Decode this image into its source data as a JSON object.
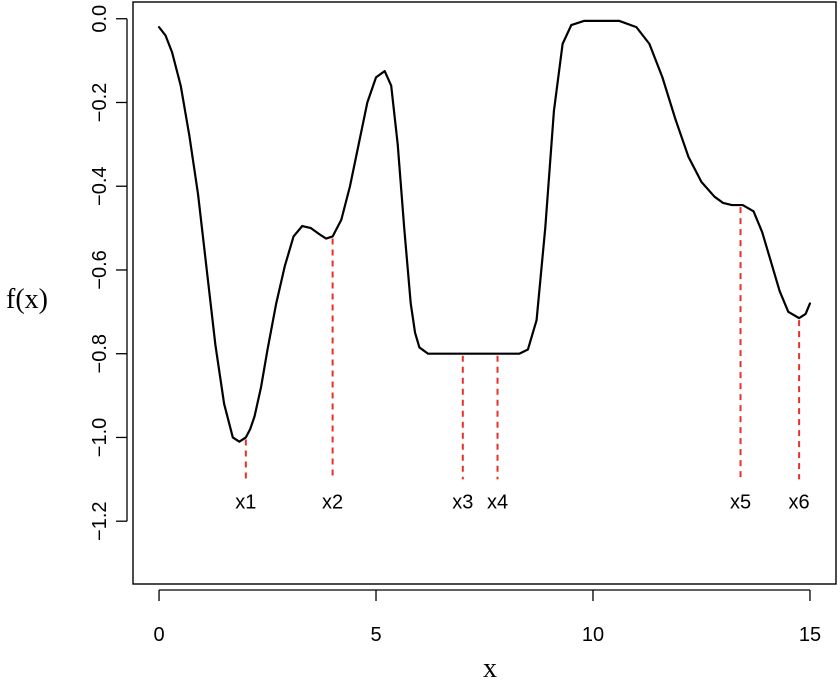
{
  "chart_data": {
    "type": "line",
    "title": "",
    "xlabel": "x",
    "ylabel": "f(x)",
    "xlim": [
      -0.6,
      15.6
    ],
    "ylim": [
      -1.35,
      0.04
    ],
    "x_ticks": [
      0,
      5,
      10,
      15
    ],
    "x_tick_labels": [
      "0",
      "5",
      "10",
      "15"
    ],
    "y_ticks": [
      0.0,
      -0.2,
      -0.4,
      -0.6,
      -0.8,
      -1.0,
      -1.2
    ],
    "y_tick_labels": [
      "0.0",
      "−0.2",
      "−0.4",
      "−0.6",
      "−0.8",
      "−1.0",
      "−1.2"
    ],
    "grid": false,
    "line_color": "#000000",
    "annotation_color": "#e8302a",
    "series": [
      {
        "x": [
          0.0,
          0.15,
          0.3,
          0.5,
          0.7,
          0.9,
          1.1,
          1.3,
          1.5,
          1.7,
          1.85,
          2.0,
          2.1,
          2.2,
          2.35,
          2.5,
          2.7,
          2.9,
          3.1,
          3.3,
          3.5,
          3.7,
          3.85,
          4.0,
          4.2,
          4.4,
          4.6,
          4.8,
          5.0,
          5.2,
          5.35,
          5.5,
          5.65,
          5.8,
          5.9,
          6.0,
          6.2,
          6.5,
          7.0,
          7.5,
          8.0,
          8.3,
          8.5,
          8.7,
          8.9,
          9.1,
          9.3,
          9.5,
          9.8,
          10.2,
          10.6,
          11.0,
          11.3,
          11.6,
          11.9,
          12.2,
          12.5,
          12.8,
          13.0,
          13.2,
          13.45,
          13.7,
          13.9,
          14.1,
          14.3,
          14.5,
          14.75,
          14.9,
          15.0
        ],
        "y": [
          -0.02,
          -0.04,
          -0.08,
          -0.16,
          -0.28,
          -0.42,
          -0.6,
          -0.78,
          -0.92,
          -1.0,
          -1.01,
          -1.0,
          -0.98,
          -0.95,
          -0.88,
          -0.79,
          -0.68,
          -0.59,
          -0.52,
          -0.495,
          -0.5,
          -0.515,
          -0.525,
          -0.52,
          -0.48,
          -0.4,
          -0.3,
          -0.2,
          -0.14,
          -0.125,
          -0.16,
          -0.3,
          -0.5,
          -0.68,
          -0.75,
          -0.785,
          -0.8,
          -0.8,
          -0.8,
          -0.8,
          -0.8,
          -0.8,
          -0.79,
          -0.72,
          -0.5,
          -0.22,
          -0.06,
          -0.015,
          -0.005,
          -0.005,
          -0.005,
          -0.02,
          -0.06,
          -0.14,
          -0.24,
          -0.33,
          -0.39,
          -0.425,
          -0.44,
          -0.445,
          -0.445,
          -0.46,
          -0.51,
          -0.58,
          -0.65,
          -0.7,
          -0.715,
          -0.705,
          -0.68
        ]
      }
    ],
    "annotations": [
      {
        "label": "x1",
        "x": 2.0,
        "y": -1.0
      },
      {
        "label": "x2",
        "x": 4.0,
        "y": -0.52
      },
      {
        "label": "x3",
        "x": 7.0,
        "y": -0.8
      },
      {
        "label": "x4",
        "x": 7.8,
        "y": -0.8
      },
      {
        "label": "x5",
        "x": 13.4,
        "y": -0.445
      },
      {
        "label": "x6",
        "x": 14.75,
        "y": -0.715
      }
    ],
    "annotation_label_y": -1.155,
    "annotation_line_end_y": -1.1
  }
}
